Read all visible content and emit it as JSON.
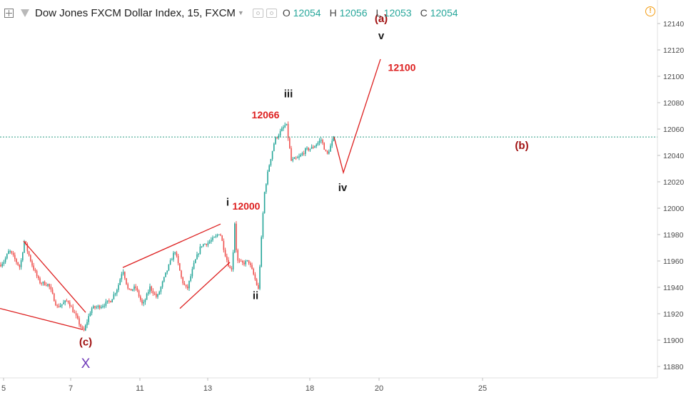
{
  "header": {
    "symbol_title": "Dow Jones FXCM Dollar Index, 15, FXCM",
    "ohlc": [
      {
        "key": "O",
        "value": "12054"
      },
      {
        "key": "H",
        "value": "12056"
      },
      {
        "key": "L",
        "value": "12053"
      },
      {
        "key": "C",
        "value": "12054"
      }
    ],
    "alert_glyph": "!"
  },
  "colors": {
    "up": "#26a69a",
    "down": "#ef5350",
    "annotation_red": "#dd1f1f",
    "wave_dark_red": "#a01010",
    "x_purple": "#6f3ab8",
    "last_price_line": "#2e9e85",
    "axis_text": "#4a4a4a"
  },
  "chart_data": {
    "type": "candlestick",
    "xlabel": "",
    "ylabel": "",
    "x_ticks": [
      "5",
      "7",
      "11",
      "13",
      "18",
      "20",
      "25"
    ],
    "y_ticks": [
      12140,
      12120,
      12100,
      12080,
      12060,
      12040,
      12020,
      12000,
      11980,
      11960,
      11940,
      11920,
      11900,
      11880
    ],
    "ylim": [
      11874,
      12150
    ],
    "last_price": 12054,
    "price_path": [
      {
        "t": 0,
        "p": 11957
      },
      {
        "t": 6,
        "p": 11960
      },
      {
        "t": 13,
        "p": 11968
      },
      {
        "t": 20,
        "p": 11962
      },
      {
        "t": 28,
        "p": 11955
      },
      {
        "t": 34,
        "p": 11975
      },
      {
        "t": 45,
        "p": 11957
      },
      {
        "t": 55,
        "p": 11944
      },
      {
        "t": 68,
        "p": 11942
      },
      {
        "t": 80,
        "p": 11925
      },
      {
        "t": 95,
        "p": 11930
      },
      {
        "t": 108,
        "p": 11916
      },
      {
        "t": 117,
        "p": 11906
      },
      {
        "t": 128,
        "p": 11924
      },
      {
        "t": 142,
        "p": 11926
      },
      {
        "t": 155,
        "p": 11930
      },
      {
        "t": 165,
        "p": 11940
      },
      {
        "t": 172,
        "p": 11954
      },
      {
        "t": 180,
        "p": 11937
      },
      {
        "t": 190,
        "p": 11940
      },
      {
        "t": 200,
        "p": 11926
      },
      {
        "t": 210,
        "p": 11940
      },
      {
        "t": 220,
        "p": 11932
      },
      {
        "t": 232,
        "p": 11950
      },
      {
        "t": 245,
        "p": 11968
      },
      {
        "t": 255,
        "p": 11945
      },
      {
        "t": 262,
        "p": 11938
      },
      {
        "t": 272,
        "p": 11958
      },
      {
        "t": 282,
        "p": 11972
      },
      {
        "t": 292,
        "p": 11974
      },
      {
        "t": 302,
        "p": 11978
      },
      {
        "t": 308,
        "p": 11982
      },
      {
        "t": 316,
        "p": 11964
      },
      {
        "t": 322,
        "p": 11954
      },
      {
        "t": 326,
        "p": 11955
      },
      {
        "t": 328,
        "p": 11996
      },
      {
        "t": 332,
        "p": 11960
      },
      {
        "t": 340,
        "p": 11958
      },
      {
        "t": 348,
        "p": 11960
      },
      {
        "t": 355,
        "p": 11950
      },
      {
        "t": 362,
        "p": 11938
      },
      {
        "t": 366,
        "p": 11975
      },
      {
        "t": 370,
        "p": 12010
      },
      {
        "t": 376,
        "p": 12030
      },
      {
        "t": 385,
        "p": 12052
      },
      {
        "t": 393,
        "p": 12058
      },
      {
        "t": 401,
        "p": 12064
      },
      {
        "t": 408,
        "p": 12036
      },
      {
        "t": 418,
        "p": 12038
      },
      {
        "t": 428,
        "p": 12044
      },
      {
        "t": 438,
        "p": 12046
      },
      {
        "t": 450,
        "p": 12052
      },
      {
        "t": 458,
        "p": 12040
      },
      {
        "t": 468,
        "p": 12054
      }
    ],
    "annotations": [
      {
        "type": "polyline",
        "color": "red",
        "points": [
          {
            "t": 33,
            "p": 11975
          },
          {
            "t": 120,
            "p": 11921
          }
        ]
      },
      {
        "type": "polyline",
        "color": "red",
        "points": [
          {
            "t": 0,
            "p": 11924
          },
          {
            "t": 116,
            "p": 11908
          }
        ]
      },
      {
        "type": "polyline",
        "color": "red",
        "points": [
          {
            "t": 172,
            "p": 11955
          },
          {
            "t": 309,
            "p": 11988
          }
        ]
      },
      {
        "type": "polyline",
        "color": "red",
        "points": [
          {
            "t": 252,
            "p": 11924
          },
          {
            "t": 322,
            "p": 11959
          }
        ]
      },
      {
        "type": "polyline",
        "color": "red",
        "points": [
          {
            "t": 468,
            "p": 12054
          },
          {
            "t": 481,
            "p": 12027
          },
          {
            "t": 533,
            "p": 12113
          }
        ]
      }
    ],
    "labels": [
      {
        "text": "(a)",
        "t": 534,
        "p": 12141,
        "role": "wave_dark_red"
      },
      {
        "text": "v",
        "t": 534,
        "p": 12128,
        "role": "wave_dark"
      },
      {
        "text": "12100",
        "t": 563,
        "p": 12104,
        "role": "annotation_red"
      },
      {
        "text": "iii",
        "t": 404,
        "p": 12084,
        "role": "wave_dark"
      },
      {
        "text": "12066",
        "t": 372,
        "p": 12068,
        "role": "annotation_red"
      },
      {
        "text": "(b)",
        "t": 731,
        "p": 12045,
        "role": "wave_dark_red"
      },
      {
        "text": "iv",
        "t": 480,
        "p": 12013,
        "role": "wave_dark"
      },
      {
        "text": "i",
        "t": 319,
        "p": 12002,
        "role": "wave_dark"
      },
      {
        "text": "12000",
        "t": 345,
        "p": 11999,
        "role": "annotation_red"
      },
      {
        "text": "ii",
        "t": 358,
        "p": 11931,
        "role": "wave_dark"
      },
      {
        "text": "(c)",
        "t": 120,
        "p": 11896,
        "role": "wave_dark_red"
      },
      {
        "text": "X",
        "t": 120,
        "p": 11879,
        "role": "x_purple"
      }
    ]
  }
}
